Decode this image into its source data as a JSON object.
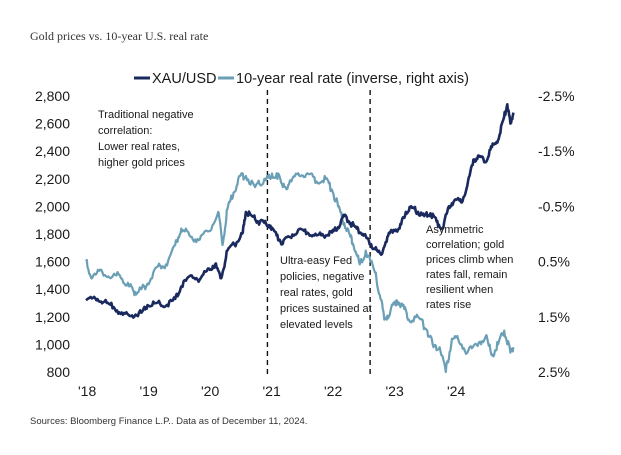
{
  "title": "Gold prices vs. 10-year U.S. real rate",
  "source": "Sources: Bloomberg Finance L.P.. Data as of December 11, 2024.",
  "colors": {
    "gold": "#1a2a5e",
    "real_rate": "#6a9fb5",
    "text": "#1a1a1a"
  },
  "chart_data": {
    "type": "line",
    "title": "Gold prices vs. 10-year U.S. real rate",
    "legend_position": "top-center",
    "grid": false,
    "x_ticks": [
      "'18",
      "'19",
      "'20",
      "'21",
      "'22",
      "'23",
      "'24"
    ],
    "x_range": [
      2018.0,
      2025.0
    ],
    "y_left": {
      "range": [
        800,
        2800
      ],
      "ticks": [
        "800",
        "1,000",
        "1,200",
        "1,400",
        "1,600",
        "1,800",
        "2,000",
        "2,200",
        "2,400",
        "2,600",
        "2,800"
      ]
    },
    "y_right": {
      "range": [
        2.5,
        -2.5
      ],
      "inverted": true,
      "ticks": [
        "-2.5%",
        "-1.5%",
        "-0.5%",
        "0.5%",
        "1.5%",
        "2.5%"
      ],
      "tick_values": [
        -2.5,
        -1.5,
        -0.5,
        0.5,
        1.5,
        2.5
      ]
    },
    "series": [
      {
        "name": "XAU/USD",
        "axis": "left",
        "x": [
          2018.0,
          2018.15,
          2018.3,
          2018.45,
          2018.6,
          2018.75,
          2018.9,
          2019.0,
          2019.15,
          2019.3,
          2019.45,
          2019.55,
          2019.7,
          2019.85,
          2020.0,
          2020.1,
          2020.2,
          2020.3,
          2020.45,
          2020.55,
          2020.6,
          2020.7,
          2020.8,
          2020.9,
          2021.0,
          2021.1,
          2021.2,
          2021.3,
          2021.45,
          2021.6,
          2021.75,
          2021.9,
          2022.0,
          2022.1,
          2022.2,
          2022.3,
          2022.4,
          2022.5,
          2022.6,
          2022.7,
          2022.8,
          2022.9,
          2023.0,
          2023.1,
          2023.2,
          2023.3,
          2023.4,
          2023.5,
          2023.6,
          2023.7,
          2023.8,
          2023.9,
          2024.0,
          2024.1,
          2024.2,
          2024.3,
          2024.4,
          2024.5,
          2024.6,
          2024.7,
          2024.8,
          2024.85,
          2024.9,
          2024.95
        ],
        "values": [
          1320,
          1335,
          1310,
          1270,
          1215,
          1210,
          1230,
          1285,
          1300,
          1280,
          1330,
          1420,
          1500,
          1470,
          1550,
          1580,
          1480,
          1680,
          1740,
          1810,
          1960,
          1930,
          1890,
          1880,
          1860,
          1790,
          1730,
          1780,
          1830,
          1810,
          1790,
          1790,
          1810,
          1850,
          1930,
          1880,
          1840,
          1800,
          1750,
          1690,
          1650,
          1780,
          1830,
          1840,
          1960,
          1990,
          1960,
          1930,
          1950,
          1890,
          1840,
          2000,
          2050,
          2030,
          2150,
          2340,
          2360,
          2320,
          2430,
          2480,
          2650,
          2740,
          2600,
          2680
        ]
      },
      {
        "name": "10-year real rate (inverse, right axis)",
        "axis": "right",
        "x": [
          2018.0,
          2018.1,
          2018.25,
          2018.4,
          2018.55,
          2018.7,
          2018.8,
          2018.9,
          2019.0,
          2019.15,
          2019.3,
          2019.45,
          2019.55,
          2019.7,
          2019.85,
          2020.0,
          2020.15,
          2020.22,
          2020.3,
          2020.4,
          2020.5,
          2020.6,
          2020.75,
          2020.9,
          2021.0,
          2021.1,
          2021.2,
          2021.3,
          2021.45,
          2021.6,
          2021.75,
          2021.9,
          2022.0,
          2022.1,
          2022.2,
          2022.3,
          2022.35,
          2022.45,
          2022.55,
          2022.7,
          2022.8,
          2022.85,
          2022.95,
          2023.05,
          2023.15,
          2023.25,
          2023.4,
          2023.55,
          2023.65,
          2023.75,
          2023.85,
          2023.95,
          2024.05,
          2024.2,
          2024.35,
          2024.5,
          2024.6,
          2024.7,
          2024.8,
          2024.9,
          2024.95
        ],
        "values": [
          0.5,
          0.8,
          0.65,
          0.8,
          0.75,
          0.95,
          1.05,
          1.0,
          0.9,
          0.6,
          0.55,
          0.2,
          -0.1,
          0.05,
          0.1,
          -0.05,
          -0.4,
          0.2,
          -0.45,
          -0.75,
          -1.05,
          -1.05,
          -0.85,
          -1.0,
          -1.0,
          -1.1,
          -0.85,
          -0.9,
          -1.1,
          -1.1,
          -0.95,
          -1.0,
          -0.8,
          -0.5,
          -0.2,
          0.05,
          0.2,
          0.55,
          0.3,
          0.7,
          1.2,
          1.55,
          1.4,
          1.2,
          1.3,
          1.55,
          1.5,
          1.75,
          2.05,
          2.05,
          2.5,
          1.9,
          1.9,
          2.15,
          2.0,
          1.85,
          2.2,
          2.0,
          1.75,
          2.15,
          2.05
        ]
      }
    ],
    "vlines": [
      2020.95,
      2022.62
    ],
    "annotations": [
      {
        "lines": [
          "Traditional negative",
          "correlation:",
          "Lower real rates,",
          "higher gold prices"
        ]
      },
      {
        "lines": [
          "Ultra-easy Fed",
          "policies, negative",
          "real rates, gold",
          "prices sustained at",
          "elevated levels"
        ]
      },
      {
        "lines": [
          "Asymmetric",
          "correlation; gold",
          "prices climb when",
          "rates fall, remain",
          "resilient when",
          "rates rise"
        ]
      }
    ]
  }
}
